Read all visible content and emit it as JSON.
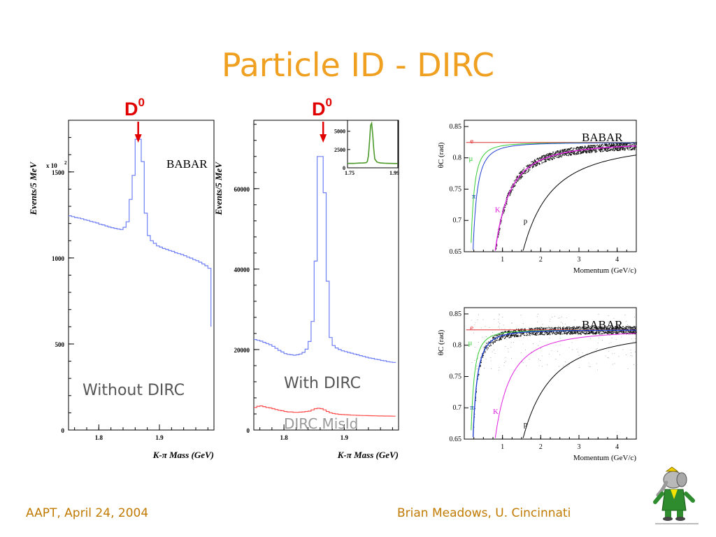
{
  "title": "Particle ID - DIRC",
  "footer": {
    "left": "AAPT, April 24, 2004",
    "right": "Brian Meadows, U. Cincinnati"
  },
  "colors": {
    "title": "#f0a020",
    "footer": "#c07a00",
    "d0_marker": "#e00000",
    "histogram": "#6f7ff5",
    "misid": "#ff4d4d",
    "fit_green": "#4c9a2a"
  },
  "chart_data": [
    {
      "id": "without_dirc",
      "type": "line",
      "ylabel": "Events/5 MeV",
      "xlabel": "K-π Mass (GeV)",
      "yscale_note": "x 10",
      "yscale_exp": "2",
      "xlim": [
        1.75,
        1.99
      ],
      "ylim": [
        0,
        1800
      ],
      "xticks": [
        1.8,
        1.9
      ],
      "yticks": [
        0,
        500,
        1000,
        1500
      ],
      "ytick_labels": [
        "0",
        "500",
        "1000",
        "1500"
      ],
      "peak_label": "D",
      "peak_sup": "0",
      "peak_x": 1.865,
      "logo": "BABAR",
      "annotation": "Without DIRC",
      "series": [
        {
          "x": [
            1.75,
            1.755,
            1.76,
            1.765,
            1.77,
            1.775,
            1.78,
            1.785,
            1.79,
            1.795,
            1.8,
            1.805,
            1.81,
            1.815,
            1.82,
            1.825,
            1.83,
            1.835,
            1.84,
            1.845,
            1.85,
            1.855,
            1.86,
            1.865,
            1.87,
            1.875,
            1.88,
            1.885,
            1.89,
            1.895,
            1.9,
            1.905,
            1.91,
            1.915,
            1.92,
            1.925,
            1.93,
            1.935,
            1.94,
            1.945,
            1.95,
            1.955,
            1.96,
            1.965,
            1.97,
            1.975,
            1.98,
            1.985
          ],
          "values": [
            1245,
            1240,
            1235,
            1232,
            1228,
            1222,
            1218,
            1212,
            1208,
            1203,
            1196,
            1192,
            1186,
            1180,
            1176,
            1172,
            1168,
            1165,
            1178,
            1210,
            1340,
            1480,
            1690,
            1690,
            1560,
            1260,
            1130,
            1100,
            1085,
            1070,
            1063,
            1055,
            1050,
            1043,
            1038,
            1030,
            1025,
            1020,
            1013,
            1005,
            999,
            990,
            984,
            975,
            965,
            955,
            940,
            600
          ]
        }
      ]
    },
    {
      "id": "with_dirc",
      "type": "line",
      "ylabel": "Events/5 MeV",
      "xlabel": "K-π Mass (GeV)",
      "xlim": [
        1.75,
        1.99
      ],
      "ylim": [
        0,
        77000
      ],
      "xticks": [
        1.8,
        1.9
      ],
      "yticks": [
        0,
        20000,
        40000,
        60000
      ],
      "ytick_labels": [
        "0",
        "20000",
        "40000",
        "60000"
      ],
      "peak_label": "D",
      "peak_sup": "0",
      "peak_x": 1.865,
      "annotation": "With DIRC",
      "annotation2": "DIRC MisId",
      "series": [
        {
          "name": "With DIRC",
          "x": [
            1.75,
            1.755,
            1.76,
            1.765,
            1.77,
            1.775,
            1.78,
            1.785,
            1.79,
            1.795,
            1.8,
            1.805,
            1.81,
            1.815,
            1.82,
            1.825,
            1.83,
            1.835,
            1.84,
            1.845,
            1.85,
            1.855,
            1.86,
            1.865,
            1.87,
            1.875,
            1.88,
            1.885,
            1.89,
            1.895,
            1.9,
            1.905,
            1.91,
            1.915,
            1.92,
            1.925,
            1.93,
            1.935,
            1.94,
            1.945,
            1.95,
            1.955,
            1.96,
            1.965,
            1.97,
            1.975,
            1.98,
            1.985
          ],
          "values": [
            22500,
            22300,
            22100,
            21800,
            21500,
            21200,
            20800,
            20300,
            19800,
            19400,
            19000,
            18800,
            18700,
            18600,
            18700,
            18900,
            19300,
            20100,
            22000,
            27000,
            42000,
            68000,
            68000,
            59000,
            37000,
            23000,
            21000,
            20400,
            20000,
            19700,
            19500,
            19300,
            19100,
            18900,
            18700,
            18500,
            18300,
            18100,
            17900,
            17800,
            17600,
            17500,
            17300,
            17200,
            17000,
            16900,
            16800,
            16700
          ]
        },
        {
          "name": "DIRC MisId",
          "x": [
            1.75,
            1.755,
            1.76,
            1.765,
            1.77,
            1.775,
            1.78,
            1.785,
            1.79,
            1.795,
            1.8,
            1.805,
            1.81,
            1.815,
            1.82,
            1.825,
            1.83,
            1.835,
            1.84,
            1.845,
            1.85,
            1.855,
            1.86,
            1.865,
            1.87,
            1.875,
            1.88,
            1.885,
            1.89,
            1.895,
            1.9,
            1.905,
            1.91,
            1.915,
            1.92,
            1.925,
            1.93,
            1.935,
            1.94,
            1.945,
            1.95,
            1.955,
            1.96,
            1.965,
            1.97,
            1.975,
            1.98,
            1.985
          ],
          "values": [
            5600,
            5900,
            6000,
            5800,
            5600,
            5500,
            5300,
            5100,
            4900,
            4800,
            4600,
            4500,
            4500,
            4400,
            4400,
            4450,
            4500,
            4600,
            4700,
            5000,
            5300,
            5400,
            5300,
            5000,
            4600,
            4300,
            4100,
            4000,
            3900,
            3850,
            3800,
            3750,
            3700,
            3680,
            3650,
            3620,
            3600,
            3580,
            3560,
            3540,
            3520,
            3500,
            3490,
            3480,
            3470,
            3460,
            3450,
            3440
          ]
        }
      ],
      "inset": {
        "xlim": [
          1.75,
          1.99
        ],
        "ylim": [
          0,
          6500
        ],
        "xtick_labels": [
          "1.75",
          "1.99"
        ],
        "ytick_labels": [
          "0",
          "2500",
          "5000"
        ],
        "yticks": [
          0,
          2500,
          5000
        ],
        "x": [
          1.75,
          1.76,
          1.77,
          1.78,
          1.79,
          1.8,
          1.81,
          1.82,
          1.83,
          1.84,
          1.845,
          1.85,
          1.855,
          1.86,
          1.865,
          1.87,
          1.875,
          1.88,
          1.89,
          1.9,
          1.91,
          1.92,
          1.93,
          1.94,
          1.95,
          1.96,
          1.97,
          1.98,
          1.99
        ],
        "values": [
          600,
          600,
          600,
          600,
          620,
          640,
          650,
          660,
          680,
          720,
          900,
          1700,
          3600,
          5800,
          6100,
          4600,
          2600,
          1200,
          800,
          700,
          660,
          640,
          620,
          610,
          600,
          600,
          590,
          590,
          580
        ]
      }
    },
    {
      "id": "theta_c_1",
      "type": "scatter",
      "ylabel": "θC (rad)",
      "xlabel": "Momentum (GeV/c)",
      "xlabel_unit": "(GeV/c)",
      "ylabel_unit": "(rad)",
      "xlim": [
        0,
        4.5
      ],
      "ylim": [
        0.65,
        0.86
      ],
      "xticks": [
        1,
        2,
        3,
        4
      ],
      "yticks": [
        0.65,
        0.7,
        0.75,
        0.8,
        0.85
      ],
      "ytick_labels": [
        "0.65",
        "0.7",
        "0.75",
        "0.8",
        "0.85"
      ],
      "logo": "BABAR",
      "particle_labels": [
        "e",
        "μ",
        "π",
        "K",
        "p"
      ],
      "band_particle": "K"
    },
    {
      "id": "theta_c_2",
      "type": "scatter",
      "ylabel": "θC (rad)",
      "xlabel": "Momentum (GeV/c)",
      "xlabel_unit": "(GeV/c)",
      "ylabel_unit": "(rad)",
      "xlim": [
        0,
        4.5
      ],
      "ylim": [
        0.65,
        0.86
      ],
      "xticks": [
        1,
        2,
        3,
        4
      ],
      "yticks": [
        0.65,
        0.7,
        0.75,
        0.8,
        0.85
      ],
      "ytick_labels": [
        "0.65",
        "0.7",
        "0.75",
        "0.8",
        "0.85"
      ],
      "logo": "BABAR",
      "particle_labels": [
        "e",
        "μ",
        "π",
        "K",
        "p"
      ],
      "band_particle": "π"
    }
  ]
}
